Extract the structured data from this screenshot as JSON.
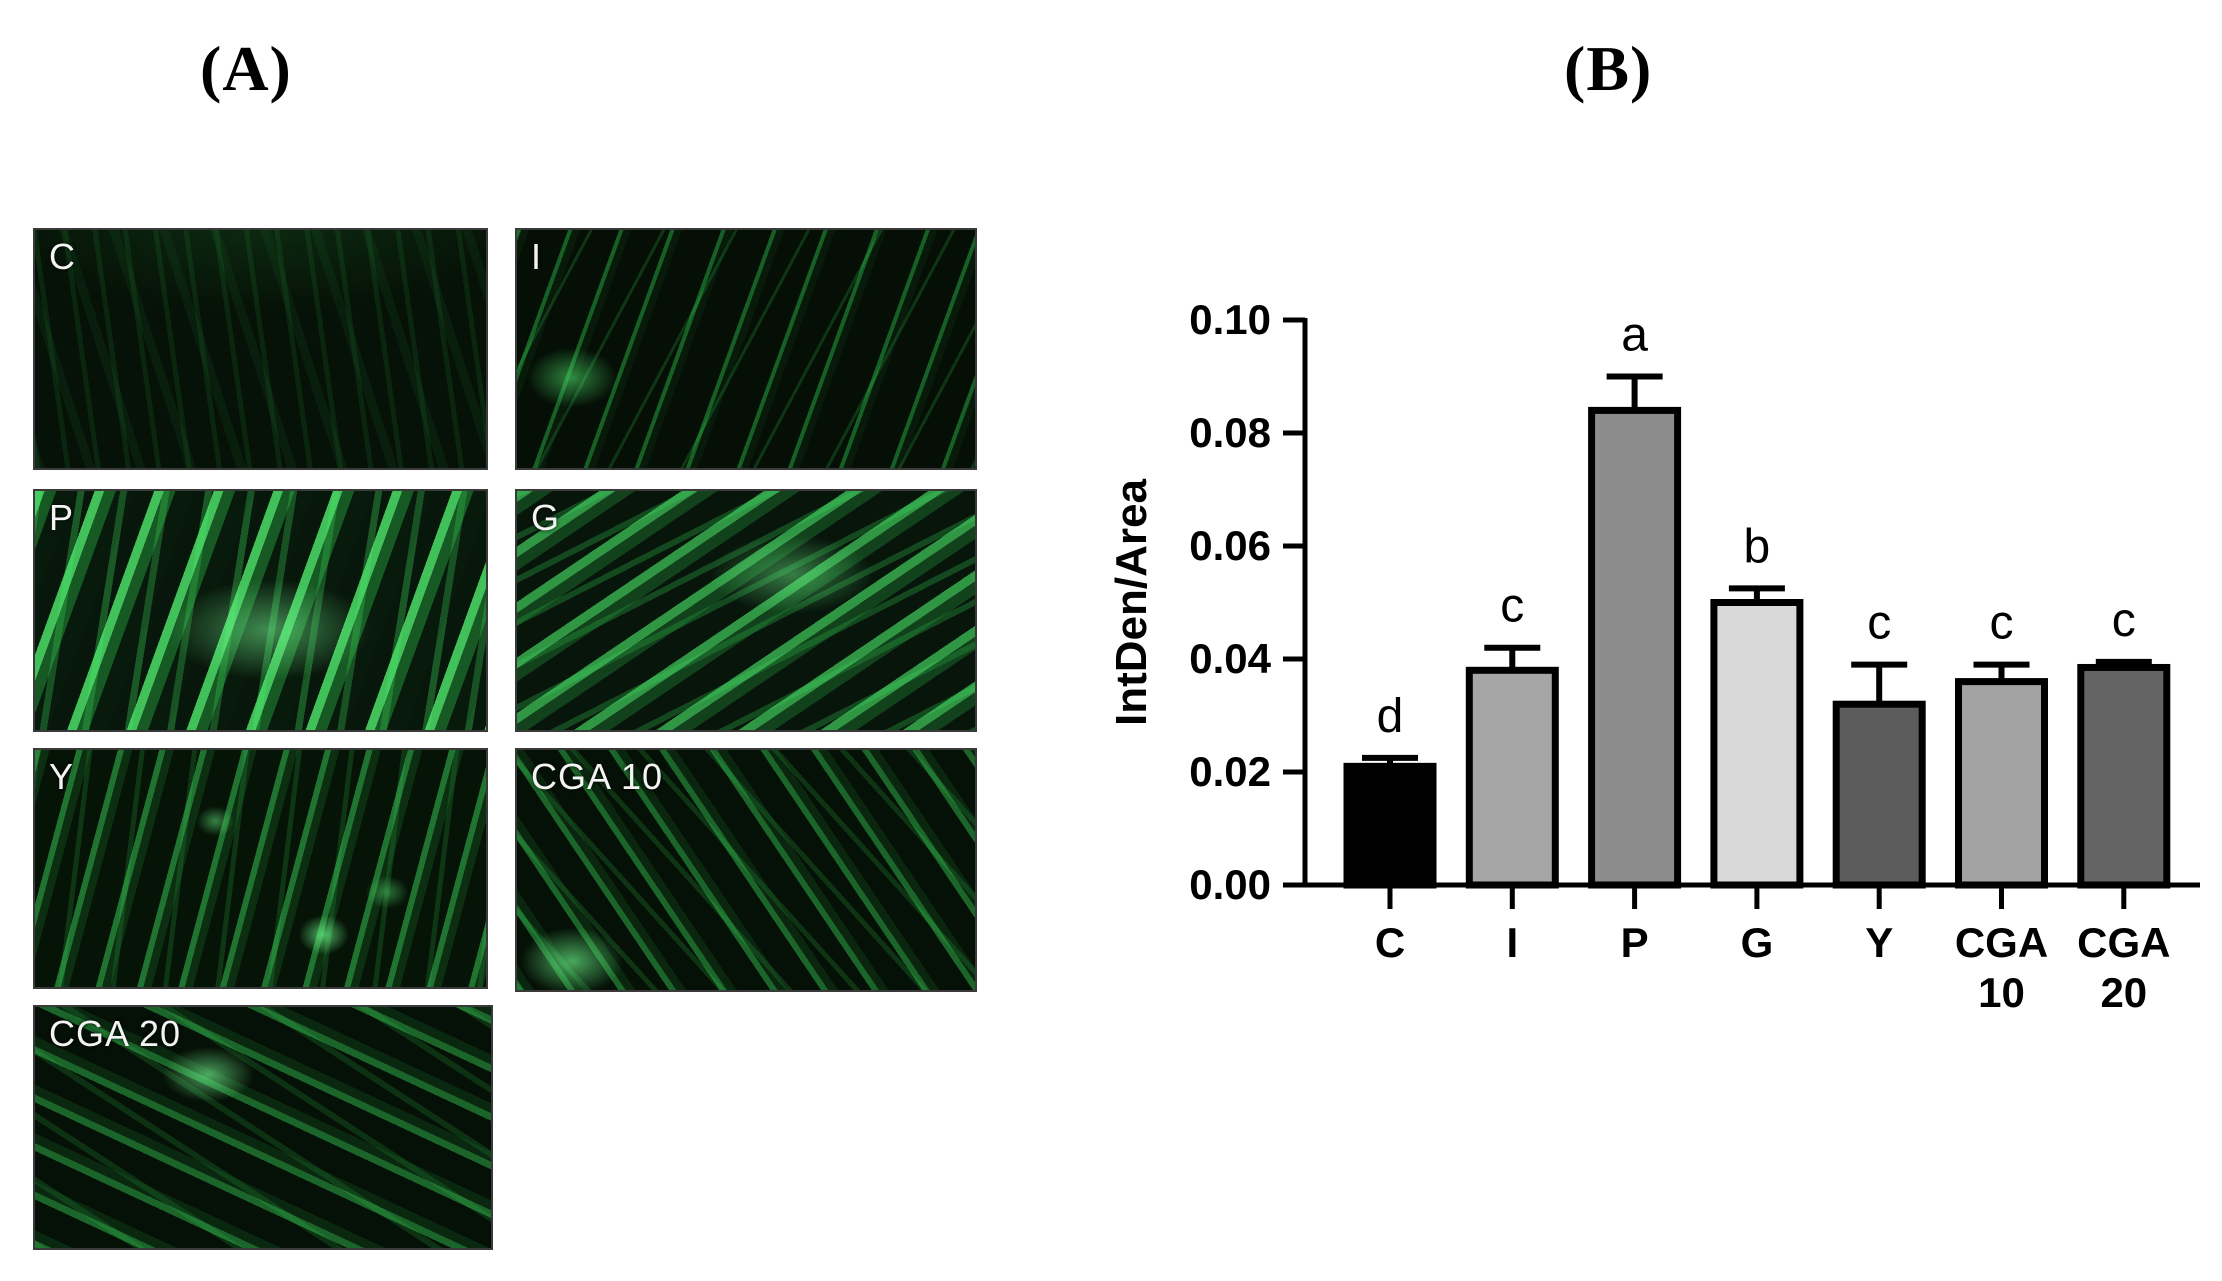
{
  "figure": {
    "panel_a_label": "(A)",
    "panel_b_label": "(B)"
  },
  "panel_a": {
    "images": [
      {
        "label": "C"
      },
      {
        "label": "I"
      },
      {
        "label": "P"
      },
      {
        "label": "G"
      },
      {
        "label": "Y"
      },
      {
        "label": "CGA 10"
      },
      {
        "label": "CGA 20"
      }
    ]
  },
  "chart_data": {
    "type": "bar",
    "title": "",
    "xlabel": "",
    "ylabel": "IntDen/Area",
    "ylim": [
      0,
      0.1
    ],
    "yticks": [
      "0.00",
      "0.02",
      "0.04",
      "0.06",
      "0.08",
      "0.10"
    ],
    "grid": false,
    "legend": null,
    "categories": [
      "C",
      "I",
      "P",
      "G",
      "Y",
      "CGA 10",
      "CGA 20"
    ],
    "values": [
      0.021,
      0.038,
      0.084,
      0.05,
      0.032,
      0.036,
      0.0385
    ],
    "errors": [
      0.0015,
      0.004,
      0.006,
      0.0025,
      0.007,
      0.003,
      0.001
    ],
    "significance_letters": [
      "d",
      "c",
      "a",
      "b",
      "c",
      "c",
      "c"
    ],
    "bar_colors": [
      "#000000",
      "#a6a6a6",
      "#8c8c8c",
      "#d9d9d9",
      "#5c5c5c",
      "#a3a3a3",
      "#646464"
    ],
    "bar_outline_color": "#000000",
    "axis_color": "#000000"
  }
}
